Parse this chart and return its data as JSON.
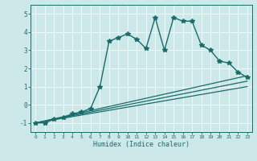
{
  "title": "",
  "xlabel": "Humidex (Indice chaleur)",
  "ylabel": "",
  "xlim": [
    -0.5,
    23.5
  ],
  "ylim": [
    -1.5,
    5.5
  ],
  "yticks": [
    -1,
    0,
    1,
    2,
    3,
    4,
    5
  ],
  "xticks": [
    0,
    1,
    2,
    3,
    4,
    5,
    6,
    7,
    8,
    9,
    10,
    11,
    12,
    13,
    14,
    15,
    16,
    17,
    18,
    19,
    20,
    21,
    22,
    23
  ],
  "bg_color": "#cce8e8",
  "line_color": "#1a6b6b",
  "grid_color": "#ffffff",
  "series": [
    {
      "x": [
        0,
        1,
        2,
        3,
        4,
        5,
        6,
        7,
        8,
        9,
        10,
        11,
        12,
        13,
        14,
        15,
        16,
        17,
        18,
        19,
        20,
        21,
        22,
        23
      ],
      "y": [
        -1.0,
        -1.0,
        -0.8,
        -0.7,
        -0.5,
        -0.4,
        -0.2,
        1.0,
        3.5,
        3.7,
        3.9,
        3.6,
        3.1,
        4.8,
        3.0,
        4.8,
        4.6,
        4.6,
        3.3,
        3.0,
        2.4,
        2.3,
        1.8,
        1.5
      ],
      "marker": "*",
      "markersize": 4,
      "linewidth": 1.0,
      "linestyle": "-"
    },
    {
      "x": [
        0,
        23
      ],
      "y": [
        -1.0,
        1.6
      ],
      "marker": null,
      "markersize": 0,
      "linewidth": 0.9,
      "linestyle": "-"
    },
    {
      "x": [
        0,
        23
      ],
      "y": [
        -1.0,
        1.3
      ],
      "marker": null,
      "markersize": 0,
      "linewidth": 0.9,
      "linestyle": "-"
    },
    {
      "x": [
        0,
        23
      ],
      "y": [
        -1.0,
        1.0
      ],
      "marker": null,
      "markersize": 0,
      "linewidth": 0.9,
      "linestyle": "-"
    }
  ]
}
